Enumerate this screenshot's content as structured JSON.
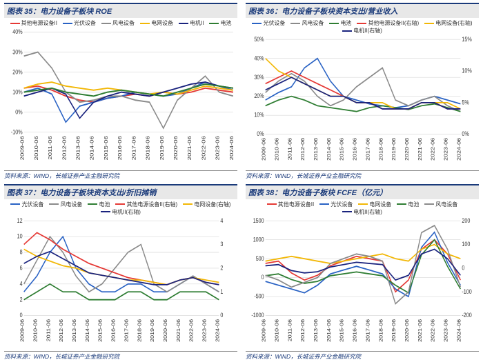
{
  "dates": [
    "2009-06",
    "2010-06",
    "2011-06",
    "2012-06",
    "2013-06",
    "2014-06",
    "2015-06",
    "2016-06",
    "2017-06",
    "2018-06",
    "2019-06",
    "2020-06",
    "2021-06",
    "2022-06",
    "2023-06",
    "2024-06"
  ],
  "source_text": "资料来源：WIND，长城证券产业金融研究院",
  "panels": [
    {
      "id": "p35",
      "title": "图表 35：电力设备子板块 ROE",
      "ylim": [
        -10,
        40
      ],
      "ytick_step": 10,
      "ysuffix": "%",
      "series": [
        {
          "name": "其他电源设备II",
          "color": "#e53935",
          "vals": [
            12,
            13,
            11,
            8,
            6,
            5,
            7,
            8,
            9,
            8,
            10,
            9,
            10,
            12,
            11,
            10
          ]
        },
        {
          "name": "光伏设备",
          "color": "#2962c4",
          "vals": [
            10,
            12,
            9,
            -5,
            3,
            5,
            7,
            8,
            10,
            9,
            8,
            9,
            12,
            15,
            13,
            11
          ]
        },
        {
          "name": "风电设备",
          "color": "#8a8a8a",
          "vals": [
            28,
            30,
            22,
            10,
            5,
            6,
            8,
            8,
            6,
            5,
            -8,
            6,
            12,
            18,
            10,
            8
          ]
        },
        {
          "name": "电网设备",
          "color": "#f2b705",
          "vals": [
            12,
            14,
            15,
            13,
            12,
            11,
            12,
            11,
            10,
            9,
            10,
            9,
            11,
            13,
            12,
            11
          ]
        },
        {
          "name": "电机II",
          "color": "#1a237e",
          "vals": [
            8,
            10,
            12,
            9,
            -3,
            5,
            8,
            10,
            9,
            8,
            10,
            12,
            14,
            15,
            13,
            12
          ]
        },
        {
          "name": "电池",
          "color": "#2e7d32",
          "vals": [
            10,
            11,
            12,
            10,
            9,
            8,
            10,
            11,
            10,
            9,
            8,
            10,
            12,
            14,
            13,
            12
          ]
        }
      ]
    },
    {
      "id": "p36",
      "title": "图表 36：电力设备子板块资本支出/营业收入",
      "ylim": [
        0,
        50
      ],
      "ytick_step": 10,
      "ysuffix": "%",
      "ylim2": [
        0,
        15
      ],
      "ytick_step2": 5,
      "ysuffix2": "%",
      "series": [
        {
          "name": "光伏设备",
          "color": "#2962c4",
          "vals": [
            18,
            22,
            25,
            35,
            40,
            28,
            20,
            18,
            16,
            15,
            14,
            15,
            18,
            20,
            18,
            16
          ]
        },
        {
          "name": "风电设备",
          "color": "#8a8a8a",
          "vals": [
            22,
            28,
            32,
            28,
            20,
            15,
            18,
            25,
            30,
            35,
            18,
            15,
            18,
            20,
            15,
            12
          ]
        },
        {
          "name": "电池",
          "color": "#2e7d32",
          "vals": [
            15,
            18,
            20,
            18,
            15,
            14,
            13,
            12,
            14,
            15,
            14,
            13,
            15,
            16,
            14,
            12
          ]
        },
        {
          "name": "其他电源设备II(右轴)",
          "color": "#e53935",
          "axis": 2,
          "vals": [
            8,
            9,
            10,
            9,
            8,
            7,
            6,
            5,
            5,
            4,
            4,
            4,
            5,
            5,
            4,
            4
          ]
        },
        {
          "name": "电网设备(右轴)",
          "color": "#f2b705",
          "axis": 2,
          "vals": [
            12,
            10,
            9,
            8,
            7,
            6,
            6,
            5,
            5,
            5,
            4,
            4,
            5,
            5,
            5,
            4
          ]
        },
        {
          "name": "电机II(右轴)",
          "color": "#1a237e",
          "axis": 2,
          "vals": [
            7,
            8,
            9,
            8,
            7,
            6,
            6,
            5,
            5,
            4,
            4,
            4,
            5,
            5,
            4,
            4
          ]
        }
      ]
    },
    {
      "id": "p37",
      "title": "图表 37：电力设备子板块资本支出/折旧摊销",
      "ylim": [
        0,
        12
      ],
      "ytick_step": 2,
      "ysuffix": "",
      "ylim2": [
        0,
        4
      ],
      "ytick_step2": 1,
      "ysuffix2": "",
      "series": [
        {
          "name": "光伏设备",
          "color": "#2962c4",
          "vals": [
            3,
            5,
            8,
            10,
            6,
            4,
            3,
            3,
            4,
            4,
            3,
            3,
            4,
            5,
            4,
            3
          ]
        },
        {
          "name": "风电设备",
          "color": "#8a8a8a",
          "vals": [
            4,
            7,
            10,
            8,
            5,
            3,
            4,
            6,
            8,
            9,
            4,
            3,
            4,
            5,
            4,
            3
          ]
        },
        {
          "name": "电池",
          "color": "#2e7d32",
          "vals": [
            2,
            3,
            4,
            3,
            3,
            2,
            2,
            2,
            3,
            3,
            2,
            2,
            3,
            3,
            3,
            2
          ]
        },
        {
          "name": "其他电源设备II(右轴)",
          "color": "#e53935",
          "axis": 2,
          "vals": [
            3,
            3.5,
            3.2,
            2.8,
            2.5,
            2.2,
            2.0,
            1.8,
            1.6,
            1.5,
            1.4,
            1.3,
            1.5,
            1.6,
            1.4,
            1.3
          ]
        },
        {
          "name": "电网设备(右轴)",
          "color": "#f2b705",
          "axis": 2,
          "vals": [
            2.8,
            2.5,
            2.3,
            2.1,
            2.0,
            1.8,
            1.7,
            1.6,
            1.5,
            1.5,
            1.4,
            1.3,
            1.5,
            1.6,
            1.5,
            1.4
          ]
        },
        {
          "name": "电机II(右轴)",
          "color": "#1a237e",
          "axis": 2,
          "vals": [
            2.2,
            2.5,
            2.7,
            2.4,
            2.1,
            1.8,
            1.7,
            1.6,
            1.5,
            1.4,
            1.3,
            1.3,
            1.5,
            1.6,
            1.4,
            1.3
          ]
        }
      ]
    },
    {
      "id": "p38",
      "title": "图表 38：电力设备子板块 FCFE（亿元）",
      "ylim": [
        -1000,
        1500
      ],
      "ytick_step": 500,
      "ysuffix": "",
      "ylim2": [
        -200,
        200
      ],
      "ytick_step2": 100,
      "ysuffix2": "",
      "series": [
        {
          "name": "其他电源设备II",
          "color": "#e53935",
          "axis": 2,
          "vals": [
            20,
            30,
            -20,
            -50,
            -30,
            10,
            30,
            50,
            40,
            30,
            -100,
            -50,
            80,
            120,
            60,
            -50
          ]
        },
        {
          "name": "光伏设备",
          "color": "#2962c4",
          "vals": [
            -100,
            -200,
            -300,
            -400,
            -200,
            100,
            200,
            300,
            200,
            100,
            -300,
            -500,
            800,
            1200,
            400,
            -200
          ]
        },
        {
          "name": "电网设备",
          "color": "#f2b705",
          "axis": 2,
          "vals": [
            30,
            40,
            50,
            40,
            30,
            20,
            30,
            40,
            50,
            60,
            40,
            30,
            80,
            100,
            60,
            40
          ]
        },
        {
          "name": "电池",
          "color": "#2e7d32",
          "vals": [
            50,
            100,
            -50,
            -150,
            -100,
            50,
            100,
            150,
            100,
            50,
            -200,
            -400,
            600,
            1000,
            300,
            -300
          ]
        },
        {
          "name": "风电设备",
          "color": "#8a8a8a",
          "axis": 2,
          "vals": [
            -30,
            -50,
            -80,
            -60,
            -40,
            20,
            40,
            60,
            50,
            30,
            -150,
            -100,
            150,
            180,
            80,
            -80
          ]
        },
        {
          "name": "电机II(右轴)",
          "color": "#1a237e",
          "axis": 2,
          "vals": [
            10,
            15,
            -10,
            -20,
            -15,
            5,
            15,
            25,
            20,
            15,
            -50,
            -30,
            60,
            80,
            40,
            -30
          ]
        }
      ]
    }
  ]
}
